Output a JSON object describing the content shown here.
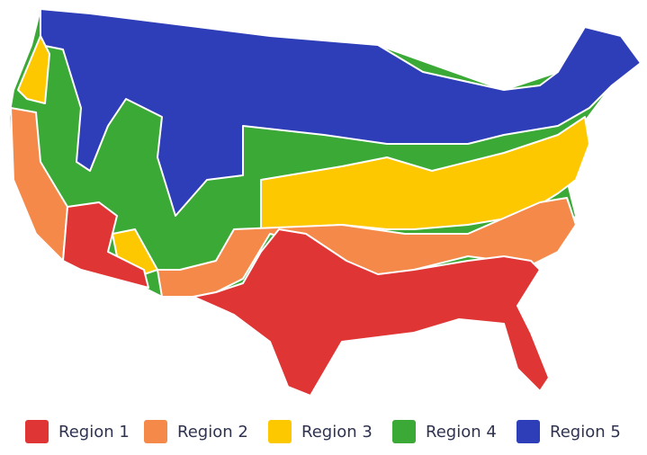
{
  "legend": {
    "items": [
      {
        "name": "Region 1",
        "color": "#e03535"
      },
      {
        "name": "Region 2",
        "color": "#f5894a"
      },
      {
        "name": "Region 3",
        "color": "#fdc800"
      },
      {
        "name": "Region 4",
        "color": "#3ba936"
      },
      {
        "name": "Region 5",
        "color": "#2e3db8"
      }
    ]
  }
}
